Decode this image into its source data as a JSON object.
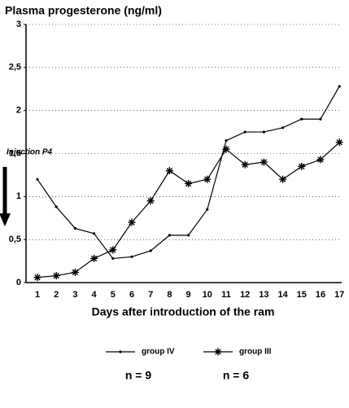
{
  "chart_data": {
    "type": "line",
    "title": "Plasma progesterone (ng/ml)",
    "x_label": "Days after introduction of the ram",
    "annotation": "Injection P4",
    "categories": [
      1,
      2,
      3,
      4,
      5,
      6,
      7,
      8,
      9,
      10,
      11,
      12,
      13,
      14,
      15,
      16,
      17
    ],
    "series": [
      {
        "name": "group IV",
        "color": "#000000",
        "marker": "dot",
        "values": [
          1.2,
          0.88,
          0.63,
          0.57,
          0.28,
          0.3,
          0.37,
          0.55,
          0.55,
          0.85,
          1.65,
          1.75,
          1.75,
          1.8,
          1.9,
          1.9,
          2.28
        ]
      },
      {
        "name": "group III",
        "color": "#000000",
        "marker": "asterisk",
        "values": [
          0.06,
          0.08,
          0.12,
          0.28,
          0.38,
          0.7,
          0.95,
          1.3,
          1.15,
          1.2,
          1.55,
          1.37,
          1.4,
          1.2,
          1.35,
          1.43,
          1.63
        ]
      }
    ],
    "legend_notes": [
      "n = 9",
      "n = 6"
    ],
    "ylim": [
      0,
      3
    ],
    "yticks": [
      0,
      {
        "value": 0.5,
        "label": "0,5"
      },
      1,
      {
        "value": 1.5,
        "label": "1,5"
      },
      2,
      {
        "value": 2.5,
        "label": "2,5"
      },
      3
    ],
    "grid": true
  }
}
